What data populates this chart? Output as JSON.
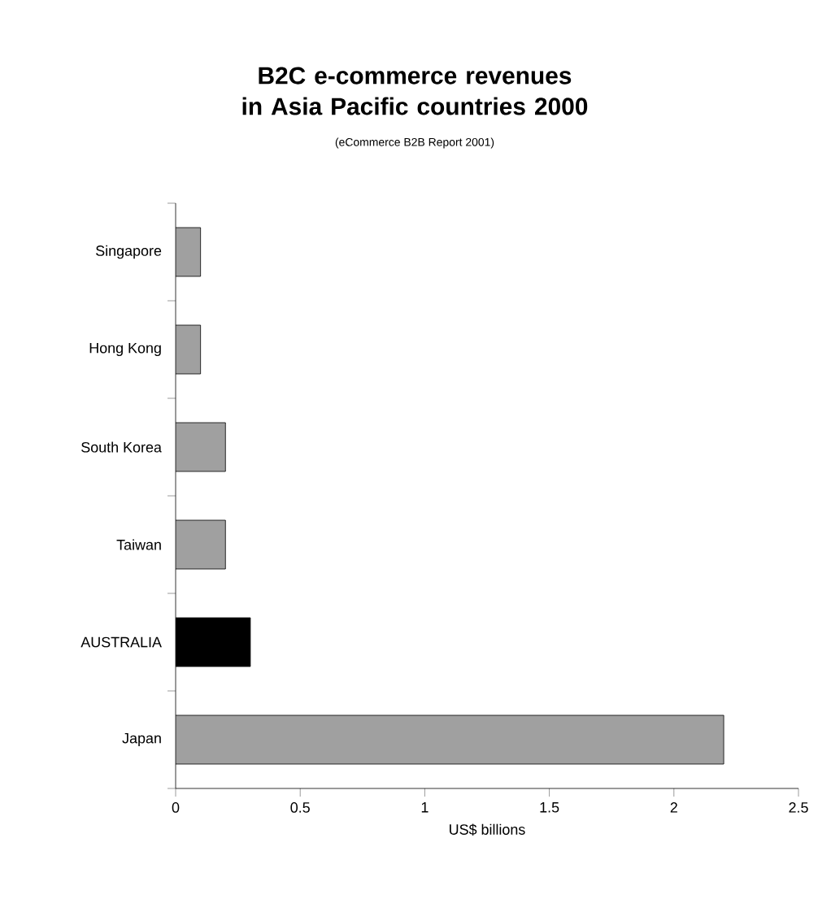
{
  "chart_data": {
    "type": "bar",
    "orientation": "horizontal",
    "title": "B2C e-commerce revenues\nin Asia Pacific countries 2000",
    "subtitle": "(eCommerce B2B Report 2001)",
    "xlabel": "US$ billions",
    "categories": [
      "Singapore",
      "Hong Kong",
      "South Korea",
      "Taiwan",
      "AUSTRALIA",
      "Japan"
    ],
    "values": [
      0.1,
      0.1,
      0.2,
      0.2,
      0.3,
      2.2
    ],
    "colors": [
      "#a0a0a0",
      "#a0a0a0",
      "#a0a0a0",
      "#a0a0a0",
      "#000000",
      "#a0a0a0"
    ],
    "xlim": [
      0,
      2.5
    ],
    "xticks": [
      0,
      0.5,
      1,
      1.5,
      2,
      2.5
    ]
  }
}
